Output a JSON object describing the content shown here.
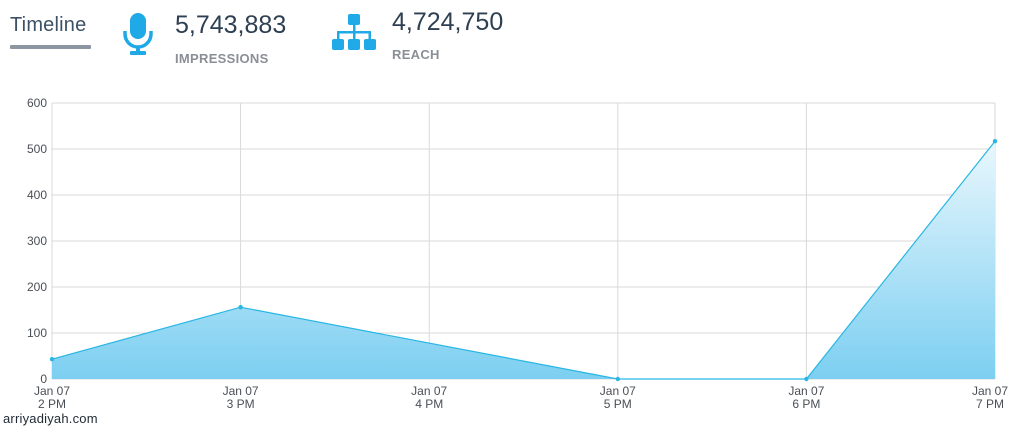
{
  "header": {
    "tab_label": "Timeline",
    "impressions": {
      "value": "5,743,883",
      "label": "IMPRESSIONS",
      "icon": "microphone-icon"
    },
    "reach": {
      "value": "4,724,750",
      "label": "REACH",
      "icon": "sitemap-icon"
    }
  },
  "colors": {
    "accent": "#1fa9e6",
    "line": "#29b6e3",
    "grid": "#d9d9d9"
  },
  "chart_data": {
    "type": "area",
    "categories": [
      [
        "Jan 07",
        "2 PM"
      ],
      [
        "Jan 07",
        "3 PM"
      ],
      [
        "Jan 07",
        "4 PM"
      ],
      [
        "Jan 07",
        "5 PM"
      ],
      [
        "Jan 07",
        "6 PM"
      ],
      [
        "Jan 07",
        "7 PM"
      ]
    ],
    "x_tick_positions": [
      0,
      1,
      2,
      3,
      4,
      5
    ],
    "points": [
      {
        "x": 0,
        "y": 43
      },
      {
        "x": 1,
        "y": 156
      },
      {
        "x": 3,
        "y": 0
      },
      {
        "x": 4,
        "y": 0
      },
      {
        "x": 5,
        "y": 517
      }
    ],
    "yticks": [
      0,
      100,
      200,
      300,
      400,
      500,
      600
    ],
    "ylim": [
      0,
      600
    ],
    "grid": true,
    "legend": "none"
  },
  "watermark": "arriyadiyah.com"
}
